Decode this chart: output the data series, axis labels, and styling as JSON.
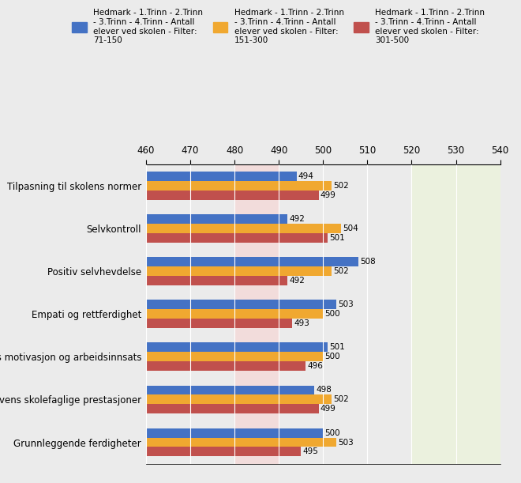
{
  "categories": [
    "Tilpasning til skolens normer",
    "Selvkontroll",
    "Positiv selvhevdelse",
    "Empati og rettferdighet",
    "Elevens motivasjon og arbeidsinnsats",
    "Elevens skolefaglige prestasjoner",
    "Grunnleggende ferdigheter"
  ],
  "series": [
    {
      "label": "Hedmark - 1.Trinn - 2.Trinn\n- 3.Trinn - 4.Trinn - Antall\nelever ved skolen - Filter:\n71-150",
      "color": "#4472C4",
      "values": [
        494,
        492,
        508,
        503,
        501,
        498,
        500
      ]
    },
    {
      "label": "Hedmark - 1.Trinn - 2.Trinn\n- 3.Trinn - 4.Trinn - Antall\nelever ved skolen - Filter:\n151-300",
      "color": "#F0A830",
      "values": [
        502,
        504,
        502,
        500,
        500,
        502,
        503
      ]
    },
    {
      "label": "Hedmark - 1.Trinn - 2.Trinn\n- 3.Trinn - 4.Trinn - Antall\nelever ved skolen - Filter:\n301-500",
      "color": "#C0504D",
      "values": [
        499,
        501,
        492,
        493,
        496,
        499,
        495
      ]
    }
  ],
  "xlim": [
    460,
    540
  ],
  "xticks": [
    460,
    470,
    480,
    490,
    500,
    510,
    520,
    530,
    540
  ],
  "background_color": "#EBEBEB",
  "pink_region": [
    480,
    490
  ],
  "green_region": [
    520,
    540
  ],
  "bar_height": 0.22,
  "label_fontsize": 8.5,
  "tick_fontsize": 8.5,
  "value_fontsize": 7.5
}
